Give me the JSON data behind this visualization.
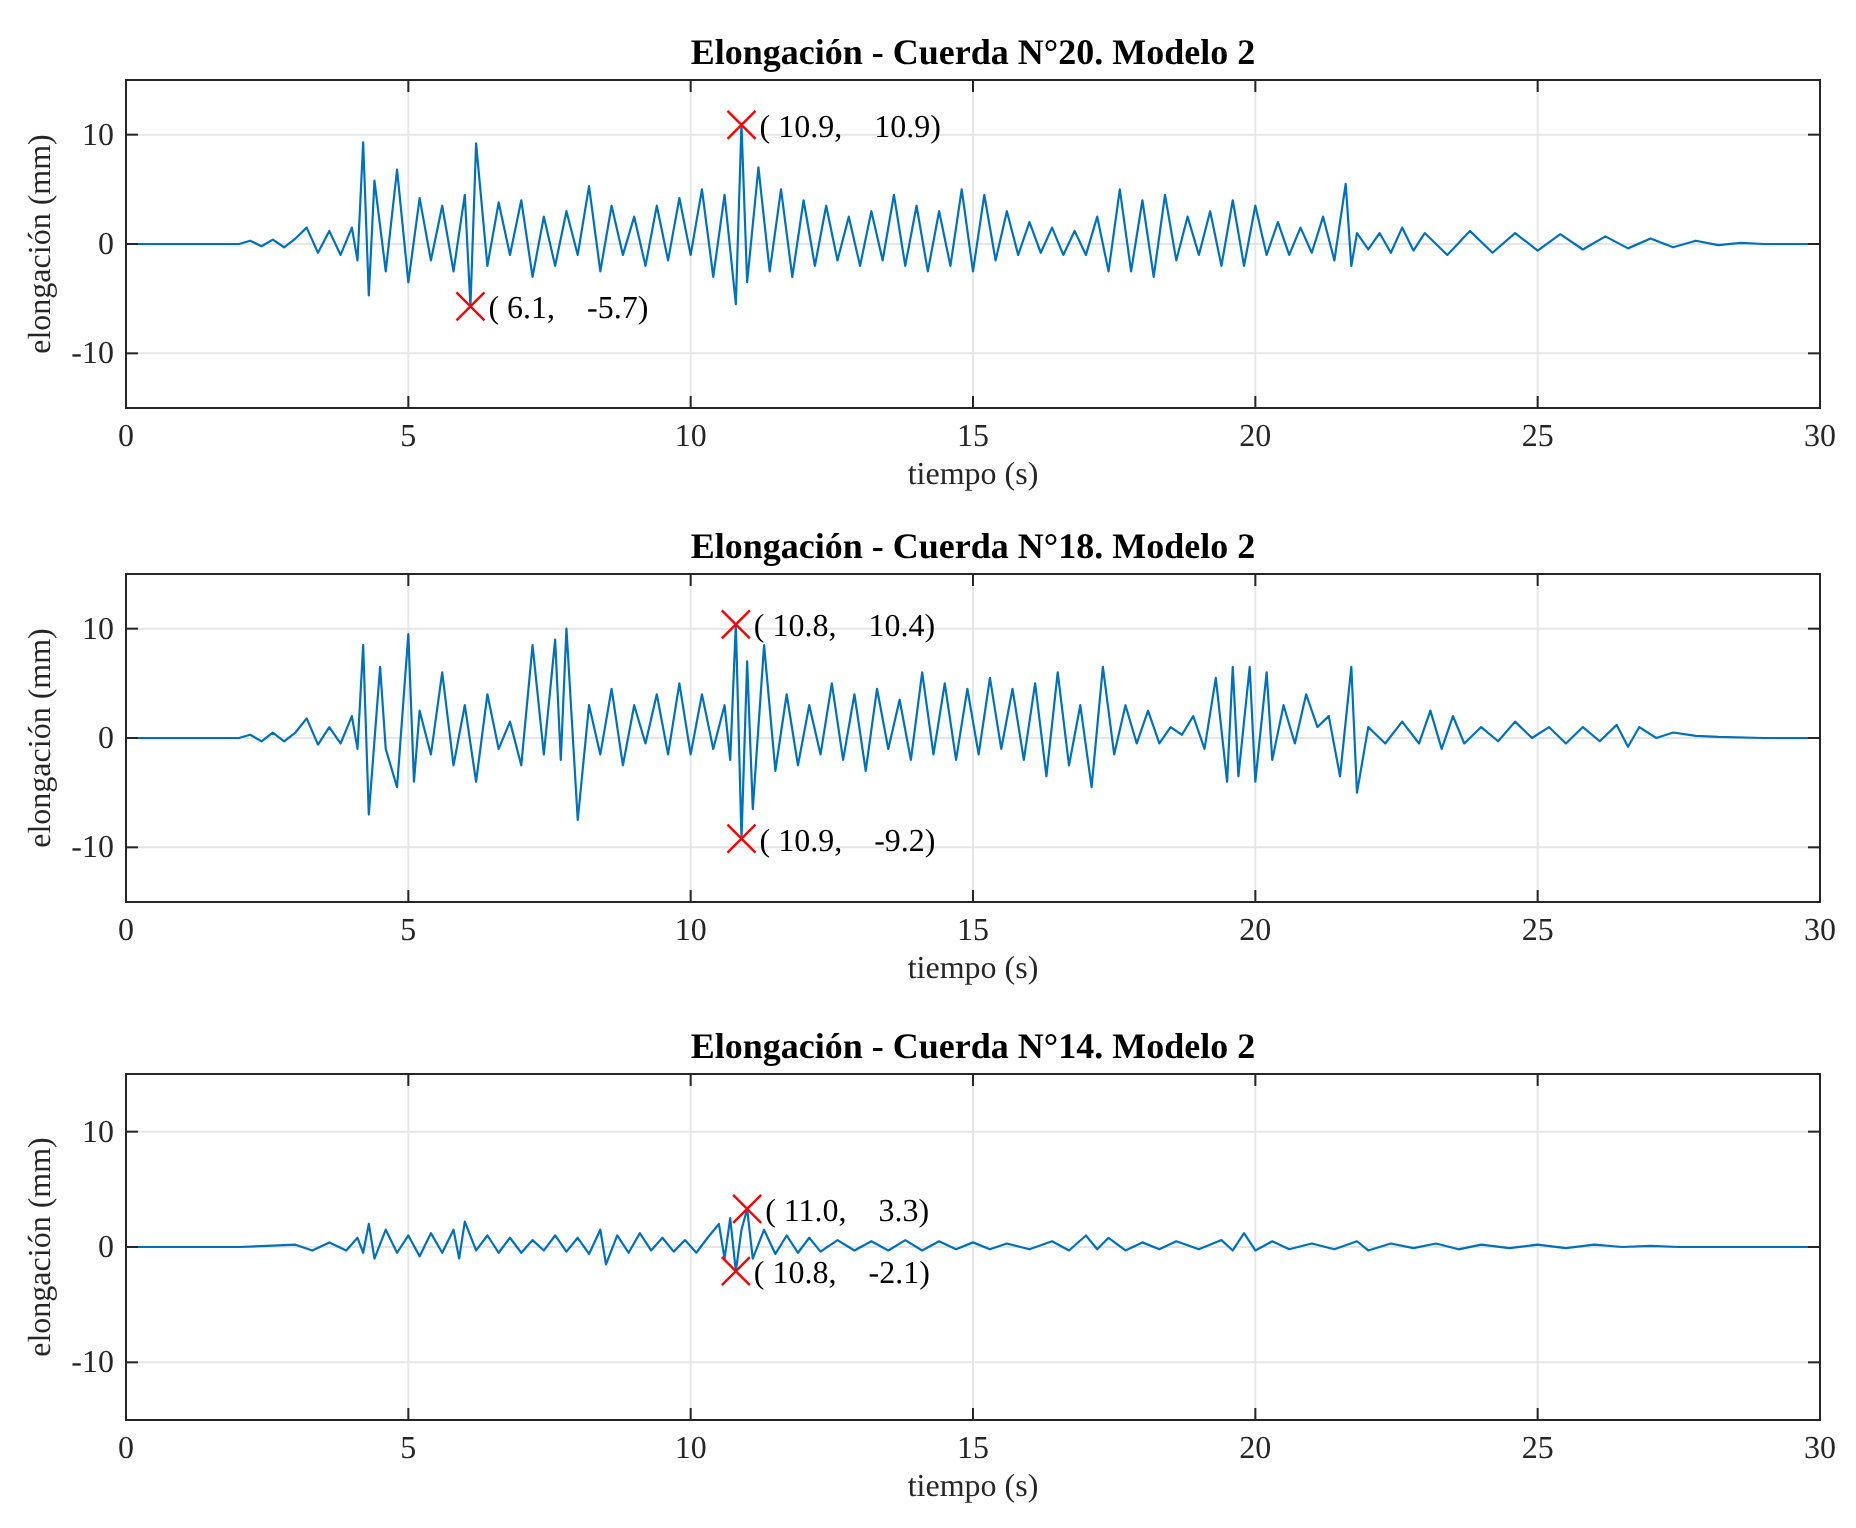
{
  "chart_data": [
    {
      "type": "line",
      "title": "Elongación - Cuerda N°20. Modelo 2",
      "xlabel": "tiempo (s)",
      "ylabel": "elongación (mm)",
      "xlim": [
        0,
        30
      ],
      "ylim": [
        -15,
        15
      ],
      "xticks": [
        0,
        5,
        10,
        15,
        20,
        25,
        30
      ],
      "yticks": [
        -10,
        0,
        10
      ],
      "grid": true,
      "series": [
        {
          "color": "#0072bd",
          "marker": "none",
          "x": [
            0,
            2.0,
            2.2,
            2.4,
            2.6,
            2.8,
            3.0,
            3.2,
            3.4,
            3.6,
            3.8,
            4.0,
            4.1,
            4.2,
            4.3,
            4.4,
            4.6,
            4.8,
            5.0,
            5.2,
            5.4,
            5.6,
            5.8,
            6.0,
            6.1,
            6.2,
            6.4,
            6.6,
            6.8,
            7.0,
            7.2,
            7.4,
            7.6,
            7.8,
            8.0,
            8.2,
            8.4,
            8.6,
            8.8,
            9.0,
            9.2,
            9.4,
            9.6,
            9.8,
            10.0,
            10.2,
            10.4,
            10.6,
            10.8,
            10.9,
            11.0,
            11.2,
            11.4,
            11.6,
            11.8,
            12.0,
            12.2,
            12.4,
            12.6,
            12.8,
            13.0,
            13.2,
            13.4,
            13.6,
            13.8,
            14.0,
            14.2,
            14.4,
            14.6,
            14.8,
            15.0,
            15.2,
            15.4,
            15.6,
            15.8,
            16.0,
            16.2,
            16.4,
            16.6,
            16.8,
            17.0,
            17.2,
            17.4,
            17.6,
            17.8,
            18.0,
            18.2,
            18.4,
            18.6,
            18.8,
            19.0,
            19.2,
            19.4,
            19.6,
            19.8,
            20.0,
            20.2,
            20.4,
            20.6,
            20.8,
            21.0,
            21.2,
            21.4,
            21.6,
            21.7,
            21.8,
            22.0,
            22.2,
            22.4,
            22.6,
            22.8,
            23.0,
            23.4,
            23.8,
            24.2,
            24.6,
            25.0,
            25.4,
            25.8,
            26.2,
            26.6,
            27.0,
            27.4,
            27.8,
            28.2,
            28.6,
            29.0,
            30.0
          ],
          "values": [
            0,
            0,
            0.3,
            -0.2,
            0.4,
            -0.3,
            0.5,
            1.5,
            -0.8,
            1.2,
            -1.0,
            1.5,
            -1.5,
            9.3,
            -4.7,
            5.8,
            -2.5,
            6.8,
            -3.5,
            4.2,
            -1.5,
            3.5,
            -2.5,
            4.5,
            -5.7,
            9.2,
            -2.0,
            3.8,
            -1.0,
            4.0,
            -3.0,
            2.5,
            -2.0,
            3.0,
            -1.0,
            5.3,
            -2.5,
            3.5,
            -1.0,
            2.5,
            -2.0,
            3.5,
            -1.5,
            4.2,
            -1.0,
            5.0,
            -3.0,
            4.5,
            -5.5,
            10.9,
            -3.5,
            7.0,
            -2.5,
            5.0,
            -3.0,
            4.0,
            -2.0,
            3.5,
            -1.5,
            2.5,
            -2.0,
            3.0,
            -1.5,
            4.5,
            -2.0,
            3.5,
            -2.5,
            3.0,
            -2.0,
            5.0,
            -2.5,
            4.5,
            -1.5,
            3.0,
            -1.0,
            2.0,
            -0.8,
            1.5,
            -1.0,
            1.2,
            -1.0,
            2.5,
            -2.5,
            5.0,
            -2.5,
            4.0,
            -3.0,
            4.5,
            -1.5,
            2.5,
            -1.0,
            3.0,
            -2.0,
            4.0,
            -2.0,
            3.5,
            -1.0,
            2.0,
            -1.0,
            1.5,
            -0.8,
            2.5,
            -1.5,
            5.5,
            -2.0,
            1.0,
            -0.5,
            1.0,
            -0.8,
            1.5,
            -0.6,
            1.0,
            -1.0,
            1.2,
            -0.8,
            1.0,
            -0.6,
            0.9,
            -0.5,
            0.7,
            -0.4,
            0.5,
            -0.3,
            0.3,
            -0.1,
            0.1,
            0,
            0
          ]
        },
        {
          "type": "scatter",
          "color": "#ff0000",
          "marker": "cross",
          "x": [
            10.9,
            6.1
          ],
          "values": [
            10.9,
            -5.7
          ],
          "value_labels": [
            "( 10.9,    10.9)",
            "( 6.1,    -5.7)"
          ]
        }
      ]
    },
    {
      "type": "line",
      "title": "Elongación - Cuerda N°18. Modelo 2",
      "xlabel": "tiempo (s)",
      "ylabel": "elongación (mm)",
      "xlim": [
        0,
        30
      ],
      "ylim": [
        -15,
        15
      ],
      "xticks": [
        0,
        5,
        10,
        15,
        20,
        25,
        30
      ],
      "yticks": [
        -10,
        0,
        10
      ],
      "grid": true,
      "series": [
        {
          "color": "#0072bd",
          "marker": "none",
          "x": [
            0,
            2.0,
            2.2,
            2.4,
            2.6,
            2.8,
            3.0,
            3.2,
            3.4,
            3.6,
            3.8,
            4.0,
            4.1,
            4.2,
            4.3,
            4.5,
            4.6,
            4.8,
            5.0,
            5.1,
            5.2,
            5.4,
            5.6,
            5.8,
            6.0,
            6.2,
            6.4,
            6.6,
            6.8,
            7.0,
            7.2,
            7.4,
            7.6,
            7.7,
            7.8,
            8.0,
            8.2,
            8.4,
            8.6,
            8.8,
            9.0,
            9.2,
            9.4,
            9.6,
            9.8,
            10.0,
            10.2,
            10.4,
            10.6,
            10.7,
            10.8,
            10.9,
            11.0,
            11.1,
            11.3,
            11.5,
            11.7,
            11.9,
            12.1,
            12.3,
            12.5,
            12.7,
            12.9,
            13.1,
            13.3,
            13.5,
            13.7,
            13.9,
            14.1,
            14.3,
            14.5,
            14.7,
            14.9,
            15.1,
            15.3,
            15.5,
            15.7,
            15.9,
            16.1,
            16.3,
            16.5,
            16.7,
            16.9,
            17.1,
            17.3,
            17.5,
            17.7,
            17.9,
            18.1,
            18.3,
            18.5,
            18.7,
            18.9,
            19.1,
            19.3,
            19.5,
            19.6,
            19.7,
            19.9,
            20.0,
            20.2,
            20.3,
            20.5,
            20.7,
            20.9,
            21.1,
            21.3,
            21.5,
            21.7,
            21.8,
            22.0,
            22.3,
            22.6,
            22.9,
            23.1,
            23.3,
            23.5,
            23.7,
            24.0,
            24.3,
            24.6,
            24.9,
            25.2,
            25.5,
            25.8,
            26.1,
            26.4,
            26.6,
            26.8,
            27.1,
            27.4,
            27.8,
            28.2,
            29.0,
            30.0
          ],
          "values": [
            0,
            0,
            0.3,
            -0.3,
            0.5,
            -0.3,
            0.5,
            1.8,
            -0.6,
            1.0,
            -0.5,
            2.0,
            -1.0,
            8.5,
            -7.0,
            6.5,
            -1.0,
            -4.5,
            9.5,
            -4.0,
            2.5,
            -1.5,
            6.0,
            -2.5,
            3.0,
            -4.0,
            4.0,
            -1.0,
            1.5,
            -2.5,
            8.5,
            -1.5,
            9.0,
            -2.0,
            10.0,
            -7.5,
            3.0,
            -1.5,
            4.5,
            -2.5,
            3.0,
            -0.5,
            4.0,
            -1.5,
            5.0,
            -1.5,
            4.0,
            -1.0,
            3.0,
            -2.0,
            10.4,
            -9.2,
            7.0,
            -6.5,
            8.5,
            -3.0,
            4.0,
            -2.5,
            3.0,
            -1.5,
            5.0,
            -2.0,
            4.0,
            -3.0,
            4.5,
            -1.0,
            3.5,
            -2.0,
            6.0,
            -1.5,
            5.0,
            -2.0,
            4.5,
            -1.5,
            5.5,
            -1.0,
            4.5,
            -2.0,
            5.0,
            -3.5,
            6.0,
            -2.5,
            3.0,
            -4.5,
            6.5,
            -1.5,
            3.0,
            -0.5,
            2.5,
            -0.5,
            1.0,
            0.3,
            2.0,
            -1.0,
            5.5,
            -4.0,
            6.5,
            -3.5,
            6.5,
            -4.0,
            6.0,
            -2.0,
            3.0,
            -0.5,
            4.0,
            1.0,
            2.0,
            -3.5,
            6.5,
            -5.0,
            1.0,
            -0.5,
            1.5,
            -0.5,
            2.5,
            -1.0,
            2.0,
            -0.5,
            1.0,
            -0.3,
            1.5,
            0.0,
            1.0,
            -0.5,
            1.0,
            -0.3,
            1.2,
            -0.8,
            1.0,
            0.0,
            0.5,
            0.2,
            0.1,
            0,
            0
          ]
        },
        {
          "type": "scatter",
          "color": "#ff0000",
          "marker": "cross",
          "x": [
            10.8,
            10.9
          ],
          "values": [
            10.4,
            -9.2
          ],
          "value_labels": [
            "( 10.8,    10.4)",
            "( 10.9,    -9.2)"
          ]
        }
      ]
    },
    {
      "type": "line",
      "title": "Elongación - Cuerda N°14. Modelo 2",
      "xlabel": "tiempo (s)",
      "ylabel": "elongación (mm)",
      "xlim": [
        0,
        30
      ],
      "ylim": [
        -15,
        15
      ],
      "xticks": [
        0,
        5,
        10,
        15,
        20,
        25,
        30
      ],
      "yticks": [
        -10,
        0,
        10
      ],
      "grid": true,
      "series": [
        {
          "color": "#0072bd",
          "marker": "none",
          "x": [
            0,
            2,
            2.5,
            3.0,
            3.3,
            3.6,
            3.9,
            4.1,
            4.2,
            4.3,
            4.4,
            4.6,
            4.8,
            5.0,
            5.2,
            5.4,
            5.6,
            5.8,
            5.9,
            6.0,
            6.2,
            6.4,
            6.6,
            6.8,
            7.0,
            7.2,
            7.4,
            7.6,
            7.8,
            8.0,
            8.2,
            8.4,
            8.5,
            8.7,
            8.9,
            9.1,
            9.3,
            9.5,
            9.7,
            9.9,
            10.1,
            10.3,
            10.5,
            10.6,
            10.7,
            10.8,
            10.9,
            11.0,
            11.1,
            11.3,
            11.5,
            11.7,
            11.9,
            12.1,
            12.3,
            12.6,
            12.9,
            13.2,
            13.5,
            13.8,
            14.1,
            14.4,
            14.7,
            15.0,
            15.3,
            15.6,
            16.0,
            16.4,
            16.7,
            17.0,
            17.2,
            17.4,
            17.7,
            18.0,
            18.3,
            18.6,
            19.0,
            19.4,
            19.6,
            19.8,
            20.0,
            20.3,
            20.6,
            21.0,
            21.4,
            21.8,
            22.0,
            22.4,
            22.8,
            23.2,
            23.6,
            24.0,
            24.5,
            25.0,
            25.5,
            26.0,
            26.5,
            27.0,
            27.5,
            28.0,
            29,
            30
          ],
          "values": [
            0,
            0,
            0.1,
            0.2,
            -0.3,
            0.4,
            -0.3,
            0.8,
            -0.5,
            2.0,
            -1.0,
            1.5,
            -0.5,
            1.0,
            -0.8,
            1.2,
            -0.5,
            1.5,
            -1.0,
            2.2,
            -0.3,
            1.0,
            -0.5,
            0.8,
            -0.5,
            0.6,
            -0.3,
            1.0,
            -0.4,
            0.8,
            -0.6,
            1.5,
            -1.5,
            1.0,
            -0.5,
            1.2,
            -0.3,
            0.8,
            -0.4,
            0.6,
            -0.5,
            0.8,
            2.0,
            -1.0,
            2.5,
            -2.1,
            1.5,
            3.3,
            -1.0,
            1.5,
            -0.6,
            1.0,
            -0.5,
            0.8,
            -0.4,
            0.6,
            -0.3,
            0.5,
            -0.3,
            0.6,
            -0.3,
            0.5,
            -0.2,
            0.4,
            -0.2,
            0.3,
            -0.2,
            0.5,
            -0.3,
            1.0,
            -0.2,
            0.8,
            -0.3,
            0.4,
            -0.2,
            0.5,
            -0.2,
            0.6,
            -0.3,
            1.2,
            -0.3,
            0.5,
            -0.2,
            0.3,
            -0.2,
            0.5,
            -0.3,
            0.3,
            -0.1,
            0.3,
            -0.2,
            0.2,
            -0.1,
            0.2,
            -0.1,
            0.2,
            0.0,
            0.1,
            0.0,
            0.0,
            0,
            0
          ]
        },
        {
          "type": "scatter",
          "color": "#ff0000",
          "marker": "cross",
          "x": [
            11.0,
            10.8
          ],
          "values": [
            3.3,
            -2.1
          ],
          "value_labels": [
            "( 11.0,    3.3)",
            "( 10.8,    -2.1)"
          ]
        }
      ]
    }
  ]
}
